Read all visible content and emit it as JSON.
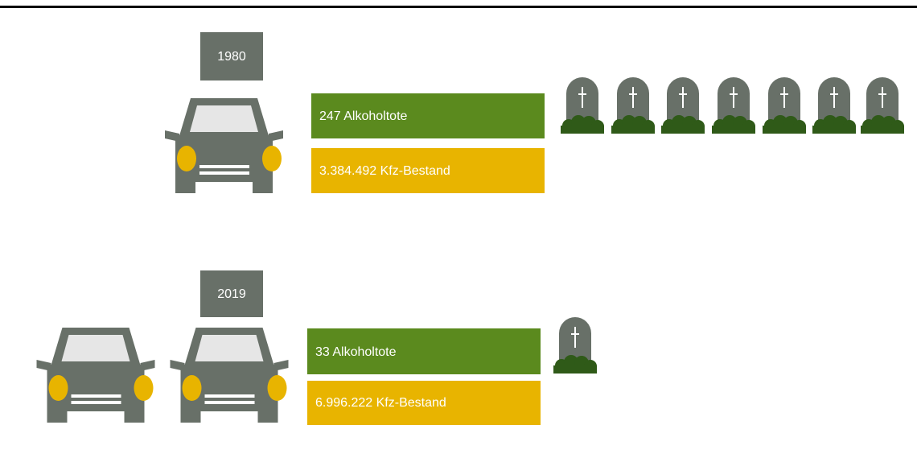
{
  "rows": [
    {
      "year": "1980",
      "deaths": "247 Alkoholtote",
      "vehicles": "3.384.492 Kfz-Bestand"
    },
    {
      "year": "2019",
      "deaths": "33 Alkoholtote",
      "vehicles": "6.996.222 Kfz-Bestand"
    }
  ]
}
